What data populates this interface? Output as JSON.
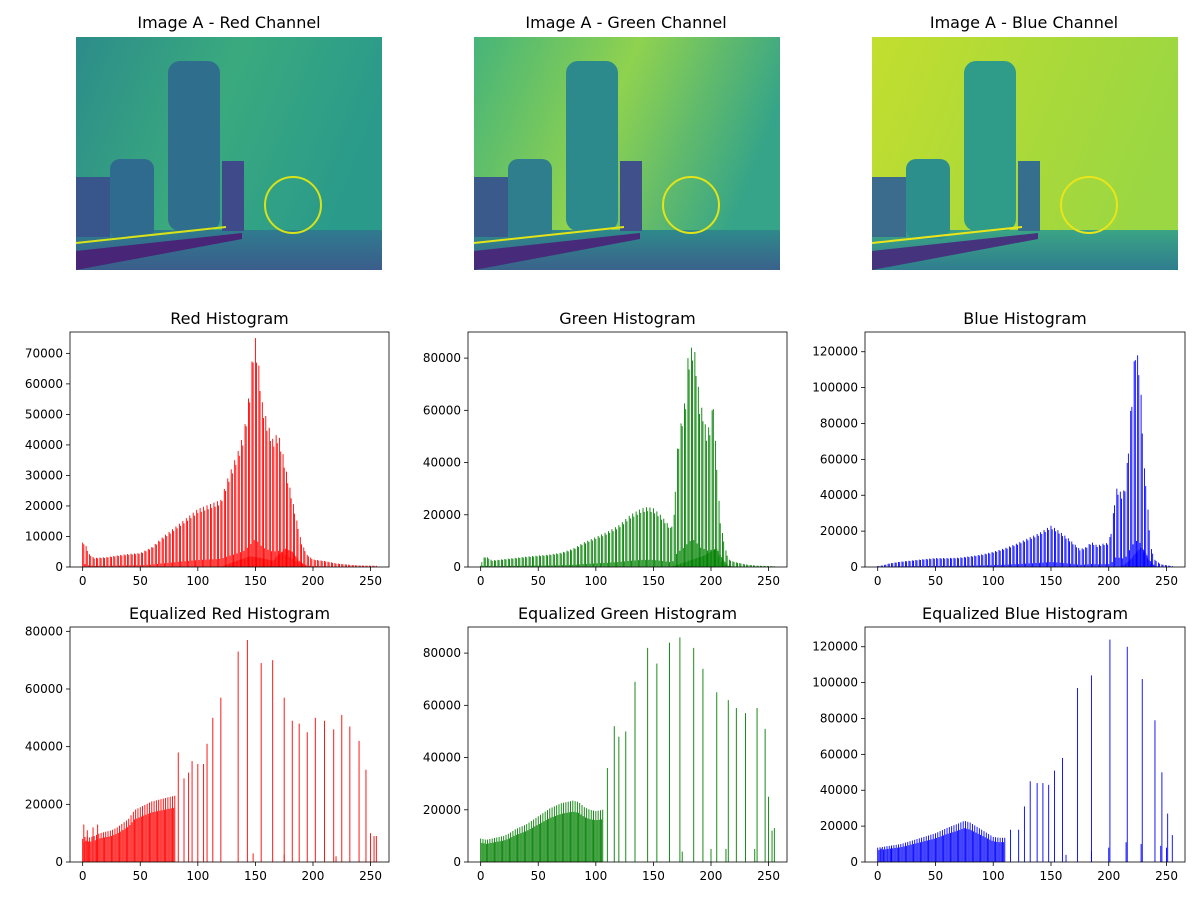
{
  "image_panels": [
    {
      "title": "Image A - Red Channel",
      "colormap": "viridis"
    },
    {
      "title": "Image A - Green Channel",
      "colormap": "viridis"
    },
    {
      "title": "Image A - Blue Channel",
      "colormap": "viridis"
    }
  ],
  "chart_data": [
    {
      "type": "bar",
      "title": "Red Histogram",
      "color": "#ff0000",
      "xlim": [
        -11,
        266
      ],
      "ylim": [
        0,
        77000
      ],
      "xticks": [
        0,
        50,
        100,
        150,
        200,
        250
      ],
      "yticks": [
        0,
        10000,
        20000,
        30000,
        40000,
        50000,
        60000,
        70000
      ],
      "peaks": [
        [
          0,
          8000
        ],
        [
          2,
          8000
        ],
        [
          5,
          4500
        ],
        [
          10,
          3000
        ],
        [
          20,
          3200
        ],
        [
          30,
          3800
        ],
        [
          40,
          4300
        ],
        [
          50,
          4600
        ],
        [
          60,
          6500
        ],
        [
          70,
          10000
        ],
        [
          80,
          13000
        ],
        [
          90,
          16000
        ],
        [
          100,
          19000
        ],
        [
          110,
          20500
        ],
        [
          120,
          22000
        ],
        [
          125,
          28000
        ],
        [
          130,
          33000
        ],
        [
          135,
          38000
        ],
        [
          140,
          44000
        ],
        [
          145,
          58000
        ],
        [
          148,
          72000
        ],
        [
          150,
          75000
        ],
        [
          153,
          66000
        ],
        [
          156,
          54000
        ],
        [
          160,
          48000
        ],
        [
          165,
          42000
        ],
        [
          170,
          44000
        ],
        [
          173,
          39000
        ],
        [
          176,
          33000
        ],
        [
          180,
          26000
        ],
        [
          185,
          17000
        ],
        [
          190,
          8000
        ],
        [
          195,
          4000
        ],
        [
          200,
          2500
        ],
        [
          210,
          2000
        ],
        [
          220,
          1200
        ],
        [
          230,
          800
        ],
        [
          240,
          500
        ],
        [
          255,
          400
        ]
      ],
      "overlay": [
        [
          120,
          0
        ],
        [
          130,
          1500
        ],
        [
          145,
          3500
        ],
        [
          155,
          3000
        ],
        [
          165,
          2000
        ],
        [
          170,
          4000
        ],
        [
          176,
          6000
        ],
        [
          182,
          5000
        ],
        [
          188,
          2000
        ],
        [
          195,
          200
        ],
        [
          200,
          0
        ]
      ]
    },
    {
      "type": "bar",
      "title": "Green Histogram",
      "color": "#008000",
      "xlim": [
        -11,
        266
      ],
      "ylim": [
        0,
        90000
      ],
      "xticks": [
        0,
        50,
        100,
        150,
        200,
        250
      ],
      "yticks": [
        0,
        20000,
        40000,
        60000,
        80000
      ],
      "peaks": [
        [
          0,
          500
        ],
        [
          2,
          3500
        ],
        [
          5,
          4000
        ],
        [
          10,
          2500
        ],
        [
          20,
          3000
        ],
        [
          30,
          3500
        ],
        [
          40,
          4000
        ],
        [
          50,
          4400
        ],
        [
          60,
          4800
        ],
        [
          70,
          5500
        ],
        [
          80,
          7000
        ],
        [
          90,
          9500
        ],
        [
          100,
          11500
        ],
        [
          110,
          13500
        ],
        [
          120,
          16000
        ],
        [
          130,
          20000
        ],
        [
          140,
          22500
        ],
        [
          145,
          23000
        ],
        [
          150,
          22500
        ],
        [
          155,
          20500
        ],
        [
          160,
          18000
        ],
        [
          165,
          15000
        ],
        [
          168,
          20000
        ],
        [
          170,
          42000
        ],
        [
          173,
          52000
        ],
        [
          175,
          58000
        ],
        [
          178,
          65000
        ],
        [
          180,
          80000
        ],
        [
          183,
          84000
        ],
        [
          185,
          86000
        ],
        [
          188,
          75000
        ],
        [
          190,
          63000
        ],
        [
          193,
          60000
        ],
        [
          196,
          52000
        ],
        [
          200,
          55000
        ],
        [
          202,
          65000
        ],
        [
          205,
          40000
        ],
        [
          208,
          18000
        ],
        [
          212,
          8000
        ],
        [
          215,
          3000
        ],
        [
          220,
          2000
        ],
        [
          230,
          1000
        ],
        [
          240,
          500
        ],
        [
          255,
          300
        ]
      ],
      "overlay": [
        [
          165,
          0
        ],
        [
          175,
          1500
        ],
        [
          185,
          3000
        ],
        [
          195,
          4500
        ],
        [
          200,
          6000
        ],
        [
          205,
          7000
        ],
        [
          210,
          3000
        ],
        [
          215,
          500
        ],
        [
          220,
          0
        ]
      ]
    },
    {
      "type": "bar",
      "title": "Blue Histogram",
      "color": "#0000ff",
      "xlim": [
        -11,
        266
      ],
      "ylim": [
        0,
        131000
      ],
      "xticks": [
        0,
        50,
        100,
        150,
        200,
        250
      ],
      "yticks": [
        0,
        20000,
        40000,
        60000,
        80000,
        100000,
        120000
      ],
      "peaks": [
        [
          0,
          500
        ],
        [
          5,
          1000
        ],
        [
          10,
          2000
        ],
        [
          20,
          3000
        ],
        [
          30,
          3700
        ],
        [
          40,
          4400
        ],
        [
          50,
          5000
        ],
        [
          60,
          5000
        ],
        [
          70,
          5200
        ],
        [
          80,
          6000
        ],
        [
          90,
          7000
        ],
        [
          100,
          8500
        ],
        [
          110,
          10500
        ],
        [
          120,
          13000
        ],
        [
          130,
          16000
        ],
        [
          140,
          19000
        ],
        [
          145,
          21000
        ],
        [
          150,
          23000
        ],
        [
          155,
          21000
        ],
        [
          160,
          18500
        ],
        [
          165,
          16000
        ],
        [
          170,
          13000
        ],
        [
          175,
          10000
        ],
        [
          180,
          11000
        ],
        [
          185,
          14000
        ],
        [
          190,
          12000
        ],
        [
          195,
          13000
        ],
        [
          200,
          13500
        ],
        [
          203,
          23000
        ],
        [
          206,
          44000
        ],
        [
          209,
          43000
        ],
        [
          212,
          40000
        ],
        [
          215,
          48000
        ],
        [
          218,
          78000
        ],
        [
          220,
          96000
        ],
        [
          223,
          124000
        ],
        [
          225,
          118000
        ],
        [
          227,
          112000
        ],
        [
          229,
          80000
        ],
        [
          231,
          55000
        ],
        [
          233,
          42000
        ],
        [
          236,
          12000
        ],
        [
          240,
          4000
        ],
        [
          245,
          1500
        ],
        [
          255,
          500
        ]
      ],
      "overlay": [
        [
          210,
          0
        ],
        [
          215,
          2000
        ],
        [
          220,
          5000
        ],
        [
          225,
          9000
        ],
        [
          228,
          11000
        ],
        [
          231,
          9000
        ],
        [
          235,
          4000
        ],
        [
          240,
          500
        ],
        [
          245,
          0
        ]
      ]
    },
    {
      "type": "bar",
      "title": "Equalized Red Histogram",
      "color": "#ff0000",
      "xlim": [
        -11,
        266
      ],
      "ylim": [
        0,
        81500
      ],
      "xticks": [
        0,
        50,
        100,
        150,
        200,
        250
      ],
      "yticks": [
        0,
        20000,
        40000,
        60000,
        80000
      ],
      "dense": [
        [
          0,
          8000
        ],
        [
          3,
          9000
        ],
        [
          6,
          8500
        ],
        [
          10,
          9000
        ],
        [
          15,
          10000
        ],
        [
          20,
          10500
        ],
        [
          25,
          11000
        ],
        [
          30,
          12000
        ],
        [
          35,
          13500
        ],
        [
          40,
          15000
        ],
        [
          45,
          18000
        ],
        [
          50,
          19000
        ],
        [
          55,
          20000
        ],
        [
          60,
          21000
        ],
        [
          65,
          21500
        ],
        [
          70,
          22000
        ],
        [
          75,
          22500
        ],
        [
          80,
          23000
        ]
      ],
      "spikes": [
        [
          1,
          13000
        ],
        [
          4,
          11000
        ],
        [
          9,
          12000
        ],
        [
          13,
          13000
        ],
        [
          83,
          38000
        ],
        [
          88,
          29000
        ],
        [
          92,
          31000
        ],
        [
          95,
          35000
        ],
        [
          100,
          34000
        ],
        [
          105,
          34000
        ],
        [
          108,
          41000
        ],
        [
          113,
          50000
        ],
        [
          120,
          57000
        ],
        [
          135,
          73000
        ],
        [
          143,
          77000
        ],
        [
          155,
          69000
        ],
        [
          165,
          70000
        ],
        [
          175,
          57000
        ],
        [
          182,
          49000
        ],
        [
          188,
          48000
        ],
        [
          195,
          45000
        ],
        [
          202,
          50000
        ],
        [
          210,
          49000
        ],
        [
          218,
          46000
        ],
        [
          225,
          51000
        ],
        [
          232,
          47000
        ],
        [
          240,
          42000
        ],
        [
          246,
          32000
        ],
        [
          250,
          10000
        ],
        [
          253,
          9000
        ],
        [
          255,
          9000
        ]
      ],
      "small": [
        [
          148,
          3000
        ],
        [
          175,
          2500
        ],
        [
          220,
          2000
        ]
      ]
    },
    {
      "type": "bar",
      "title": "Equalized Green Histogram",
      "color": "#008000",
      "xlim": [
        -11,
        266
      ],
      "ylim": [
        0,
        90000
      ],
      "xticks": [
        0,
        50,
        100,
        150,
        200,
        250
      ],
      "yticks": [
        0,
        20000,
        40000,
        60000,
        80000
      ],
      "dense": [
        [
          0,
          9000
        ],
        [
          5,
          8500
        ],
        [
          10,
          9000
        ],
        [
          15,
          9500
        ],
        [
          20,
          10000
        ],
        [
          25,
          11000
        ],
        [
          30,
          12500
        ],
        [
          35,
          13500
        ],
        [
          40,
          14500
        ],
        [
          45,
          16000
        ],
        [
          50,
          17500
        ],
        [
          55,
          19000
        ],
        [
          60,
          20500
        ],
        [
          65,
          21500
        ],
        [
          70,
          22500
        ],
        [
          75,
          23000
        ],
        [
          80,
          23500
        ],
        [
          85,
          23000
        ],
        [
          90,
          21000
        ],
        [
          95,
          20000
        ],
        [
          100,
          19500
        ],
        [
          106,
          20000
        ]
      ],
      "spikes": [
        [
          110,
          36000
        ],
        [
          116,
          52000
        ],
        [
          120,
          48000
        ],
        [
          126,
          50000
        ],
        [
          134,
          69000
        ],
        [
          145,
          82000
        ],
        [
          153,
          76000
        ],
        [
          164,
          84000
        ],
        [
          173,
          86000
        ],
        [
          185,
          82000
        ],
        [
          193,
          74000
        ],
        [
          205,
          65000
        ],
        [
          215,
          62000
        ],
        [
          222,
          59000
        ],
        [
          230,
          57000
        ],
        [
          240,
          59000
        ],
        [
          247,
          51000
        ],
        [
          250,
          25000
        ],
        [
          253,
          12000
        ],
        [
          255,
          13000
        ]
      ],
      "small": [
        [
          175,
          4000
        ],
        [
          200,
          5000
        ],
        [
          213,
          5000
        ],
        [
          238,
          5000
        ]
      ]
    },
    {
      "type": "bar",
      "title": "Equalized Blue Histogram",
      "color": "#0000ff",
      "xlim": [
        -11,
        266
      ],
      "ylim": [
        0,
        131000
      ],
      "xticks": [
        0,
        50,
        100,
        150,
        200,
        250
      ],
      "yticks": [
        0,
        20000,
        40000,
        60000,
        80000,
        100000,
        120000
      ],
      "dense": [
        [
          0,
          8000
        ],
        [
          5,
          8500
        ],
        [
          10,
          9000
        ],
        [
          15,
          9500
        ],
        [
          20,
          10000
        ],
        [
          25,
          11000
        ],
        [
          30,
          12000
        ],
        [
          40,
          14000
        ],
        [
          50,
          16000
        ],
        [
          60,
          19000
        ],
        [
          70,
          21500
        ],
        [
          75,
          23000
        ],
        [
          80,
          22000
        ],
        [
          90,
          18000
        ],
        [
          95,
          16000
        ],
        [
          100,
          14000
        ],
        [
          105,
          13500
        ],
        [
          110,
          13500
        ]
      ],
      "spikes": [
        [
          3,
          7500
        ],
        [
          8,
          8500
        ],
        [
          12,
          9000
        ],
        [
          115,
          18000
        ],
        [
          122,
          18000
        ],
        [
          127,
          31000
        ],
        [
          132,
          45000
        ],
        [
          138,
          44000
        ],
        [
          143,
          44000
        ],
        [
          148,
          43000
        ],
        [
          153,
          51000
        ],
        [
          160,
          58000
        ],
        [
          173,
          97000
        ],
        [
          185,
          104000
        ],
        [
          201,
          124000
        ],
        [
          216,
          120000
        ],
        [
          229,
          102000
        ],
        [
          240,
          79000
        ],
        [
          246,
          50000
        ],
        [
          251,
          27000
        ],
        [
          255,
          15000
        ]
      ],
      "small": [
        [
          163,
          4000
        ],
        [
          185,
          6000
        ],
        [
          200,
          8000
        ],
        [
          215,
          11000
        ],
        [
          228,
          10000
        ],
        [
          245,
          9000
        ],
        [
          250,
          8000
        ]
      ]
    }
  ]
}
